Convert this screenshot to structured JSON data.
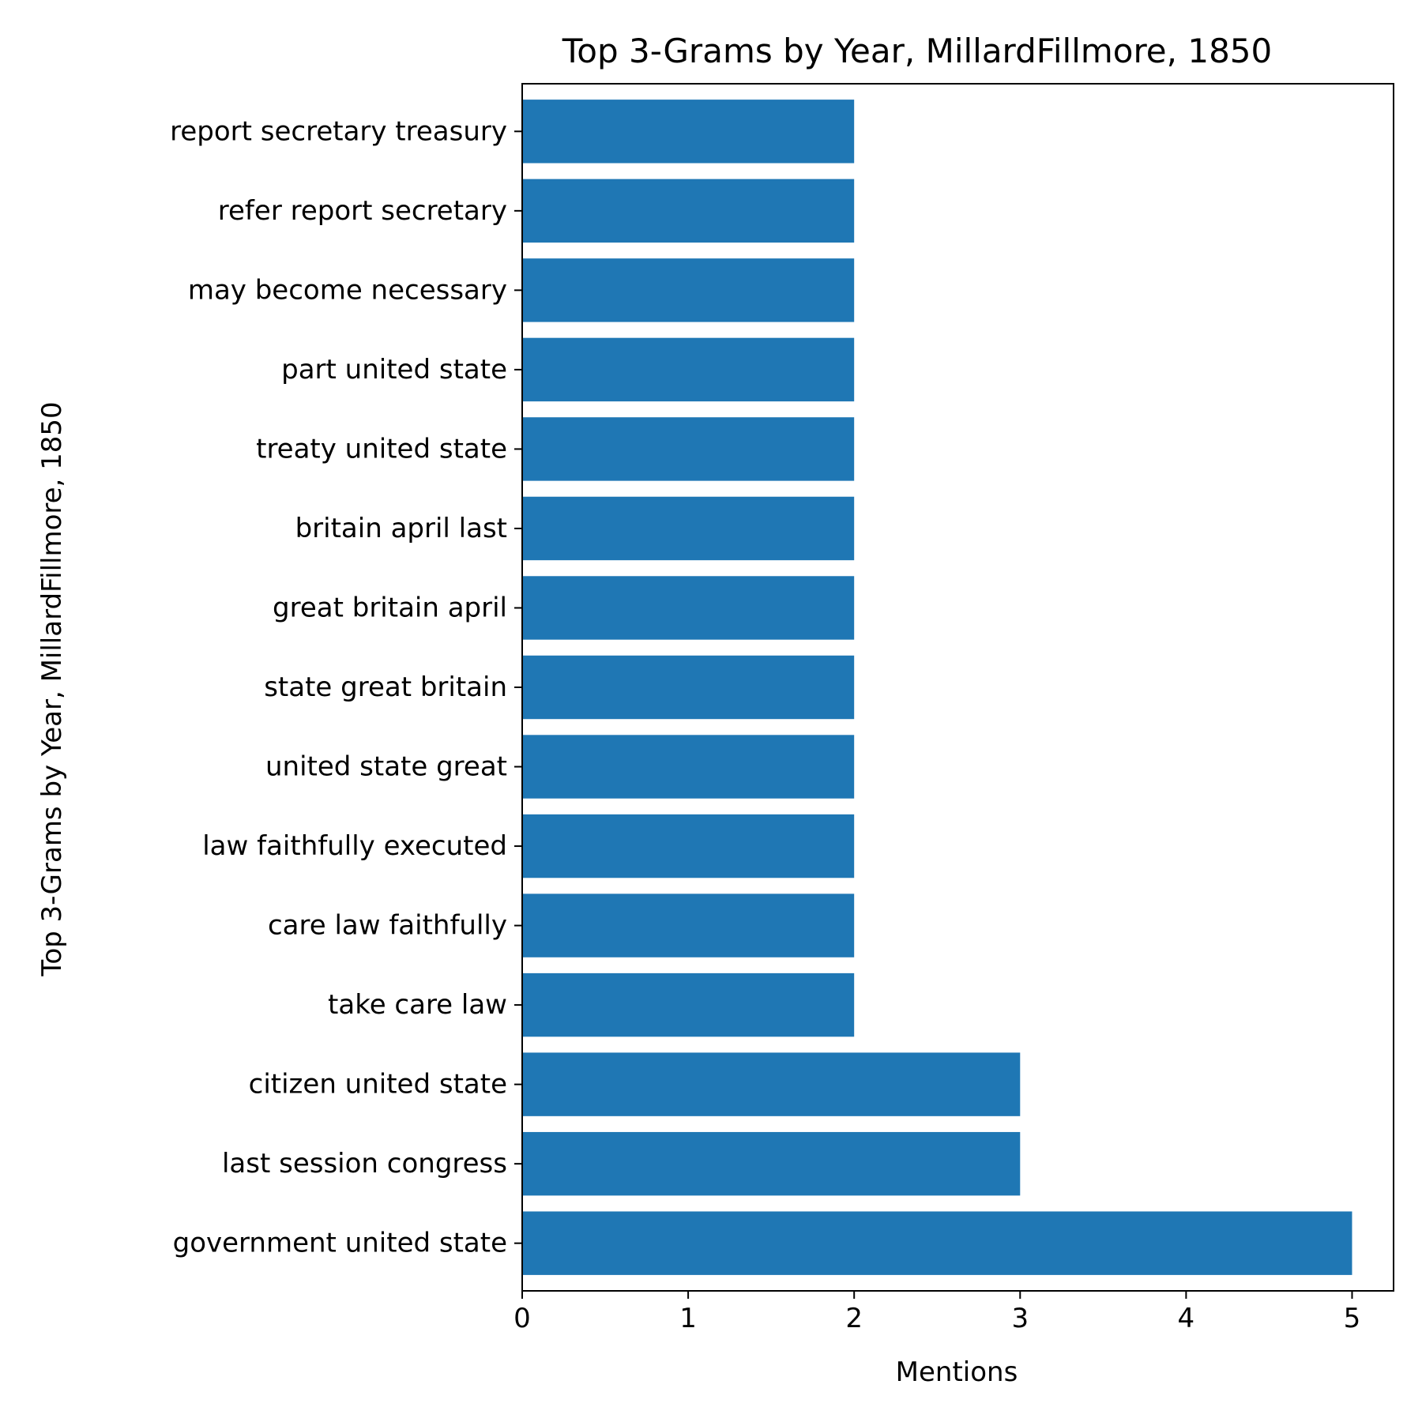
{
  "chart_data": {
    "type": "bar",
    "orientation": "horizontal",
    "title": "Top 3-Grams by Year, MillardFillmore, 1850",
    "xlabel": "Mentions",
    "ylabel": "Top 3-Grams by Year, MillardFillmore, 1850",
    "categories": [
      "government united state",
      "last session congress",
      "citizen united state",
      "take care law",
      "care law faithfully",
      "law faithfully executed",
      "united state great",
      "state great britain",
      "great britain april",
      "britain april last",
      "treaty united state",
      "part united state",
      "may become necessary",
      "refer report secretary",
      "report secretary treasury"
    ],
    "values": [
      5,
      3,
      3,
      2,
      2,
      2,
      2,
      2,
      2,
      2,
      2,
      2,
      2,
      2,
      2
    ],
    "xlim": [
      0,
      5.25
    ],
    "xticks": [
      0,
      1,
      2,
      3,
      4,
      5
    ],
    "bar_color": "#1f77b4",
    "grid": false,
    "legend": "none"
  }
}
